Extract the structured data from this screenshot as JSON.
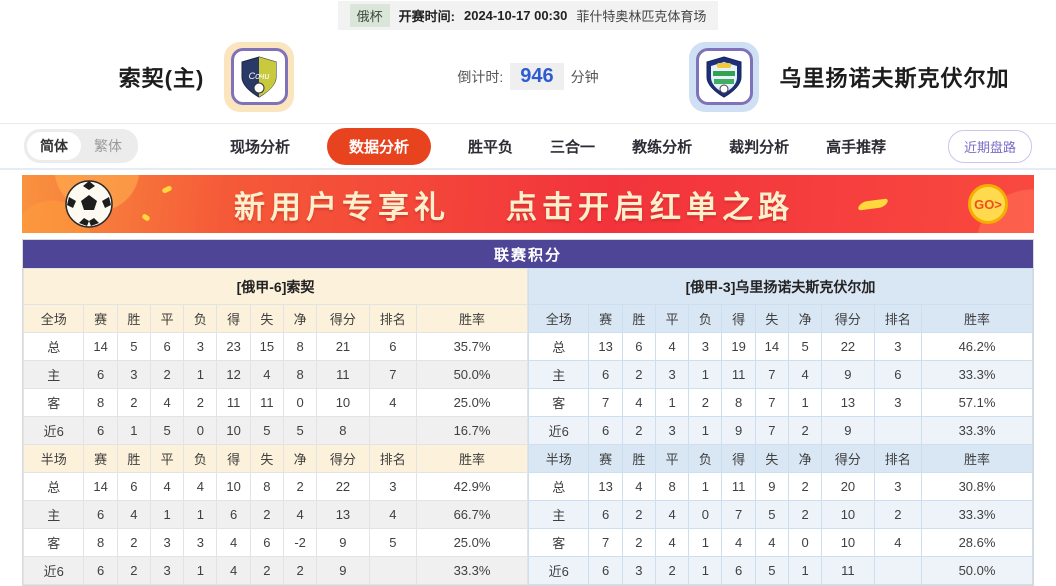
{
  "topbar": {
    "league_badge": "俄杯",
    "kickoff_label": "开赛时间:",
    "kickoff_time": "2024-10-17 00:30",
    "venue": "菲什特奥林匹克体育场"
  },
  "match": {
    "home_name": "索契(主)",
    "away_name": "乌里扬诺夫斯克伏尔加",
    "countdown_label": "倒计时:",
    "countdown_value": "946",
    "countdown_unit": "分钟"
  },
  "nav": {
    "lang_options": [
      {
        "label": "简体",
        "active": true
      },
      {
        "label": "繁体",
        "active": false
      }
    ],
    "items": [
      {
        "label": "现场分析",
        "active": false
      },
      {
        "label": "数据分析",
        "active": true
      },
      {
        "label": "胜平负",
        "active": false
      },
      {
        "label": "三合一",
        "active": false
      },
      {
        "label": "教练分析",
        "active": false
      },
      {
        "label": "裁判分析",
        "active": false
      },
      {
        "label": "高手推荐",
        "active": false
      }
    ],
    "recent_button": "近期盘路"
  },
  "banner": {
    "text_part1": "新用户专享礼",
    "text_part2": "点击开启红单之路",
    "go_label": "GO>"
  },
  "league_table": {
    "title": "联赛积分",
    "columns": [
      "赛",
      "胜",
      "平",
      "负",
      "得",
      "失",
      "净",
      "得分",
      "排名",
      "胜率"
    ],
    "sections": [
      {
        "side": "home",
        "team_label": "[俄甲-6]索契",
        "segments": [
          {
            "scope": "全场",
            "rows": [
              {
                "label": "总",
                "values": [
                  "14",
                  "5",
                  "6",
                  "3",
                  "23",
                  "15",
                  "8",
                  "21",
                  "6",
                  "35.7%"
                ]
              },
              {
                "label": "主",
                "values": [
                  "6",
                  "3",
                  "2",
                  "1",
                  "12",
                  "4",
                  "8",
                  "11",
                  "7",
                  "50.0%"
                ]
              },
              {
                "label": "客",
                "values": [
                  "8",
                  "2",
                  "4",
                  "2",
                  "11",
                  "11",
                  "0",
                  "10",
                  "4",
                  "25.0%"
                ]
              },
              {
                "label": "近6",
                "values": [
                  "6",
                  "1",
                  "5",
                  "0",
                  "10",
                  "5",
                  "5",
                  "8",
                  "",
                  "16.7%"
                ]
              }
            ]
          },
          {
            "scope": "半场",
            "rows": [
              {
                "label": "总",
                "values": [
                  "14",
                  "6",
                  "4",
                  "4",
                  "10",
                  "8",
                  "2",
                  "22",
                  "3",
                  "42.9%"
                ]
              },
              {
                "label": "主",
                "values": [
                  "6",
                  "4",
                  "1",
                  "1",
                  "6",
                  "2",
                  "4",
                  "13",
                  "4",
                  "66.7%"
                ]
              },
              {
                "label": "客",
                "values": [
                  "8",
                  "2",
                  "3",
                  "3",
                  "4",
                  "6",
                  "-2",
                  "9",
                  "5",
                  "25.0%"
                ]
              },
              {
                "label": "近6",
                "values": [
                  "6",
                  "2",
                  "3",
                  "1",
                  "4",
                  "2",
                  "2",
                  "9",
                  "",
                  "33.3%"
                ]
              }
            ]
          }
        ]
      },
      {
        "side": "away",
        "team_label": "[俄甲-3]乌里扬诺夫斯克伏尔加",
        "segments": [
          {
            "scope": "全场",
            "rows": [
              {
                "label": "总",
                "values": [
                  "13",
                  "6",
                  "4",
                  "3",
                  "19",
                  "14",
                  "5",
                  "22",
                  "3",
                  "46.2%"
                ]
              },
              {
                "label": "主",
                "values": [
                  "6",
                  "2",
                  "3",
                  "1",
                  "11",
                  "7",
                  "4",
                  "9",
                  "6",
                  "33.3%"
                ]
              },
              {
                "label": "客",
                "values": [
                  "7",
                  "4",
                  "1",
                  "2",
                  "8",
                  "7",
                  "1",
                  "13",
                  "3",
                  "57.1%"
                ]
              },
              {
                "label": "近6",
                "values": [
                  "6",
                  "2",
                  "3",
                  "1",
                  "9",
                  "7",
                  "2",
                  "9",
                  "",
                  "33.3%"
                ]
              }
            ]
          },
          {
            "scope": "半场",
            "rows": [
              {
                "label": "总",
                "values": [
                  "13",
                  "4",
                  "8",
                  "1",
                  "11",
                  "9",
                  "2",
                  "20",
                  "3",
                  "30.8%"
                ]
              },
              {
                "label": "主",
                "values": [
                  "6",
                  "2",
                  "4",
                  "0",
                  "7",
                  "5",
                  "2",
                  "10",
                  "2",
                  "33.3%"
                ]
              },
              {
                "label": "客",
                "values": [
                  "7",
                  "2",
                  "4",
                  "1",
                  "4",
                  "4",
                  "0",
                  "10",
                  "4",
                  "28.6%"
                ]
              },
              {
                "label": "近6",
                "values": [
                  "6",
                  "3",
                  "2",
                  "1",
                  "6",
                  "5",
                  "1",
                  "11",
                  "",
                  "50.0%"
                ]
              }
            ]
          }
        ]
      }
    ]
  },
  "colors": {
    "accent_red": "#e8431f",
    "table_header_purple": "#4e4597",
    "home_tint": "#fcf1da",
    "away_tint": "#d9e6f3",
    "home_row_label_red": "#cc1414",
    "away_row_label_blue": "#1a31cc",
    "countdown_blue": "#2d5bd1"
  }
}
